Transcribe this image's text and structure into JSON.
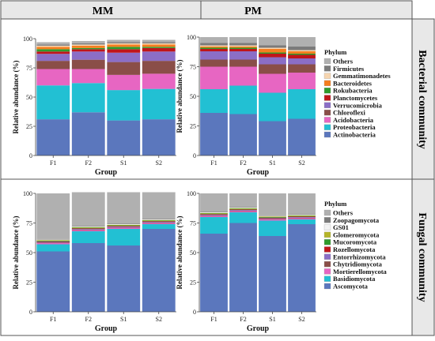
{
  "headers": {
    "col1": "MM",
    "col2": "PM"
  },
  "row_labels": {
    "top": "Bacterial community",
    "bottom": "Fungal community"
  },
  "bacteria_colors": {
    "Actinobacteria": "#5b77bd",
    "Proteobacteria": "#22c0d3",
    "Acidobacteria": "#e766c2",
    "Chloroflexi": "#8a4e48",
    "Verrucomicrobia": "#8b6ec6",
    "Planctomycetes": "#c0151a",
    "Rokubacteria": "#2f9a2c",
    "Bacteroidetes": "#f57e1f",
    "Gemmatimonadetes": "#f6d5b0",
    "Firmicutes": "#7b7b7b",
    "Others": "#b0b0b0"
  },
  "fungi_colors": {
    "Ascomycota": "#5b77bd",
    "Basidiomycota": "#22c0d3",
    "Mortierellomycota": "#e766c2",
    "Chytridiomycota": "#8a4e48",
    "Entorrhizomycota": "#8b6ec6",
    "Rozellomycota": "#c0151a",
    "Mucoromycota": "#2f9a2c",
    "Glomeromycota": "#b5b52a",
    "GS01": "#f2f2f2",
    "Zoopagomycota": "#7b7b7b",
    "Others": "#b0b0b0"
  },
  "chart_data": [
    {
      "type": "bar",
      "stacked": true,
      "panel": "bacteria-MM",
      "categories": [
        "F1",
        "F2",
        "S1",
        "S2"
      ],
      "xlabel": "Group",
      "ylabel": "Relative abundance (%)",
      "ylim": [
        0,
        100
      ],
      "yticks": [
        0,
        25,
        50,
        75,
        100
      ],
      "legend": "none",
      "series": [
        {
          "name": "Actinobacteria",
          "values": [
            31,
            37,
            30,
            31
          ]
        },
        {
          "name": "Proteobacteria",
          "values": [
            29,
            25,
            26,
            26
          ]
        },
        {
          "name": "Acidobacteria",
          "values": [
            14,
            12,
            13,
            13
          ]
        },
        {
          "name": "Chloroflexi",
          "values": [
            7,
            8,
            11,
            11
          ]
        },
        {
          "name": "Verrucomicrobia",
          "values": [
            6,
            7,
            8,
            8
          ]
        },
        {
          "name": "Planctomycetes",
          "values": [
            2,
            2,
            3,
            3
          ]
        },
        {
          "name": "Rokubacteria",
          "values": [
            2,
            1,
            2,
            1
          ]
        },
        {
          "name": "Bacteroidetes",
          "values": [
            2,
            2,
            2,
            2
          ]
        },
        {
          "name": "Gemmatimonadetes",
          "values": [
            1,
            1,
            1,
            1
          ]
        },
        {
          "name": "Firmicutes",
          "values": [
            1,
            1,
            1,
            1
          ]
        },
        {
          "name": "Others",
          "values": [
            2,
            2,
            2,
            2
          ]
        }
      ]
    },
    {
      "type": "bar",
      "stacked": true,
      "panel": "bacteria-PM",
      "categories": [
        "F1",
        "F2",
        "S1",
        "S2"
      ],
      "xlabel": "Group",
      "ylabel": "Relative abundance (%)",
      "ylim": [
        0,
        100
      ],
      "yticks": [
        0,
        25,
        50,
        75,
        100
      ],
      "legend": "right",
      "legend_title": "Phylum",
      "legend_items": [
        "Others",
        "Firmicutes",
        "Gemmatimonadetes",
        "Bacteroidetes",
        "Rokubacteria",
        "Planctomycetes",
        "Verrucomicrobia",
        "Chloroflexi",
        "Acidobacteria",
        "Proteobacteria",
        "Actinobacteria"
      ],
      "series": [
        {
          "name": "Actinobacteria",
          "values": [
            36,
            35,
            29,
            31
          ]
        },
        {
          "name": "Proteobacteria",
          "values": [
            20,
            24,
            24,
            25
          ]
        },
        {
          "name": "Acidobacteria",
          "values": [
            19,
            16,
            16,
            14
          ]
        },
        {
          "name": "Chloroflexi",
          "values": [
            6,
            6,
            8,
            7
          ]
        },
        {
          "name": "Verrucomicrobia",
          "values": [
            7,
            7,
            6,
            5
          ]
        },
        {
          "name": "Planctomycetes",
          "values": [
            2,
            2,
            3,
            3
          ]
        },
        {
          "name": "Rokubacteria",
          "values": [
            1,
            1,
            1,
            1
          ]
        },
        {
          "name": "Bacteroidetes",
          "values": [
            1,
            1,
            3,
            2
          ]
        },
        {
          "name": "Gemmatimonadetes",
          "values": [
            1,
            1,
            1,
            1
          ]
        },
        {
          "name": "Firmicutes",
          "values": [
            2,
            2,
            2,
            3
          ]
        },
        {
          "name": "Others",
          "values": [
            5,
            5,
            7,
            8
          ]
        }
      ]
    },
    {
      "type": "bar",
      "stacked": true,
      "panel": "fungi-MM",
      "categories": [
        "F1",
        "F2",
        "S1",
        "S2"
      ],
      "xlabel": "Group",
      "ylabel": "Relative abundance (%)",
      "ylim": [
        0,
        100
      ],
      "yticks": [
        0,
        25,
        50,
        75,
        100
      ],
      "legend": "none",
      "series": [
        {
          "name": "Ascomycota",
          "values": [
            51,
            58,
            56,
            70
          ]
        },
        {
          "name": "Basidiomycota",
          "values": [
            6,
            10,
            14,
            4
          ]
        },
        {
          "name": "Mortierellomycota",
          "values": [
            1,
            1,
            1,
            1
          ]
        },
        {
          "name": "Chytridiomycota",
          "values": [
            0.5,
            0.5,
            0.5,
            0.5
          ]
        },
        {
          "name": "Entorrhizomycota",
          "values": [
            0.5,
            0.5,
            0.5,
            0.5
          ]
        },
        {
          "name": "Rozellomycota",
          "values": [
            0.5,
            0.5,
            0.5,
            0.5
          ]
        },
        {
          "name": "Mucoromycota",
          "values": [
            0.5,
            0.5,
            0.5,
            0.5
          ]
        },
        {
          "name": "Glomeromycota",
          "values": [
            0.5,
            0.5,
            0.5,
            0.5
          ]
        },
        {
          "name": "GS01",
          "values": [
            0.5,
            0.5,
            0.5,
            0.5
          ]
        },
        {
          "name": "Zoopagomycota",
          "values": [
            0.5,
            0.5,
            0.5,
            0.5
          ]
        },
        {
          "name": "Others",
          "values": [
            38.5,
            28.5,
            26.5,
            22.5
          ]
        }
      ]
    },
    {
      "type": "bar",
      "stacked": true,
      "panel": "fungi-PM",
      "categories": [
        "F1",
        "F2",
        "S1",
        "S2"
      ],
      "xlabel": "Group",
      "ylabel": "Relative abundance (%)",
      "ylim": [
        0,
        100
      ],
      "yticks": [
        0,
        25,
        50,
        75,
        100
      ],
      "legend": "right",
      "legend_title": "Phylum",
      "legend_items": [
        "Others",
        "Zoopagomycota",
        "GS01",
        "Glomeromycota",
        "Mucoromycota",
        "Rozellomycota",
        "Entorrhizomycota",
        "Chytridiomycota",
        "Mortierellomycota",
        "Basidiomycota",
        "Ascomycota"
      ],
      "series": [
        {
          "name": "Ascomycota",
          "values": [
            66,
            75,
            64,
            74
          ]
        },
        {
          "name": "Basidiomycota",
          "values": [
            14,
            9,
            13,
            4
          ]
        },
        {
          "name": "Mortierellomycota",
          "values": [
            1,
            1,
            1,
            1
          ]
        },
        {
          "name": "Chytridiomycota",
          "values": [
            0.5,
            0.5,
            0.5,
            0.5
          ]
        },
        {
          "name": "Entorrhizomycota",
          "values": [
            0.5,
            0.5,
            0.5,
            0.5
          ]
        },
        {
          "name": "Rozellomycota",
          "values": [
            0.5,
            0.5,
            0.5,
            0.5
          ]
        },
        {
          "name": "Mucoromycota",
          "values": [
            0.5,
            0.5,
            0.5,
            0.5
          ]
        },
        {
          "name": "Glomeromycota",
          "values": [
            0.5,
            0.5,
            0.5,
            0.5
          ]
        },
        {
          "name": "GS01",
          "values": [
            0.5,
            0.5,
            0.5,
            0.5
          ]
        },
        {
          "name": "Zoopagomycota",
          "values": [
            0.5,
            0.5,
            0.5,
            0.5
          ]
        },
        {
          "name": "Others",
          "values": [
            15.5,
            11.5,
            18.5,
            17.5
          ]
        }
      ]
    }
  ]
}
